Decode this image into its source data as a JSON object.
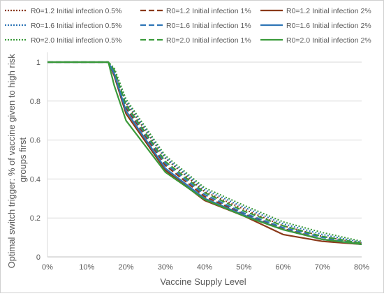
{
  "chart_data": {
    "type": "line",
    "title": "",
    "xlabel": "Vaccine Supply Level",
    "ylabel": "Optimal switch trigger: % of vaccine given to high risk groups first",
    "ylabel_lines": [
      "Optimal switch trigger: % of vaccine given to high risk",
      "groups first"
    ],
    "x_ticks": [
      0,
      10,
      20,
      30,
      40,
      50,
      60,
      70,
      80
    ],
    "x_tick_labels": [
      "0%",
      "10%",
      "20%",
      "30%",
      "40%",
      "50%",
      "60%",
      "70%",
      "80%"
    ],
    "y_ticks": [
      0,
      0.2,
      0.4,
      0.6,
      0.8,
      1
    ],
    "y_tick_labels": [
      "0",
      "0.2",
      "0.4",
      "0.6",
      "0.8",
      "1"
    ],
    "xlim": [
      0,
      80
    ],
    "ylim": [
      0,
      1
    ],
    "grid": "horizontal",
    "legend_position": "top",
    "series": [
      {
        "name": "R0=1.2 Initial infection 0.5%",
        "color": "#8b3a1a",
        "dash": "dotted",
        "x": [
          0,
          15.5,
          17,
          20,
          30,
          40,
          50,
          60,
          70,
          80
        ],
        "y": [
          1,
          1,
          0.96,
          0.79,
          0.505,
          0.335,
          0.245,
          0.16,
          0.105,
          0.07
        ]
      },
      {
        "name": "R0=1.2 Initial infection 1%",
        "color": "#8b3a1a",
        "dash": "dashed",
        "x": [
          0,
          15.5,
          17,
          20,
          30,
          40,
          50,
          60,
          70,
          80
        ],
        "y": [
          1,
          1,
          0.95,
          0.765,
          0.47,
          0.31,
          0.22,
          0.145,
          0.09,
          0.065
        ]
      },
      {
        "name": "R0=1.2 Initial infection 2%",
        "color": "#8b3a1a",
        "dash": "solid",
        "x": [
          0,
          15.5,
          17,
          20,
          30,
          40,
          50,
          60,
          70,
          80
        ],
        "y": [
          1,
          1,
          0.93,
          0.735,
          0.445,
          0.29,
          0.21,
          0.115,
          0.08,
          0.065
        ]
      },
      {
        "name": "R0=1.6 Initial infection 0.5%",
        "color": "#2e75b6",
        "dash": "dotted",
        "x": [
          0,
          15.5,
          17,
          20,
          30,
          40,
          50,
          60,
          70,
          80
        ],
        "y": [
          1,
          1,
          0.965,
          0.8,
          0.51,
          0.345,
          0.255,
          0.17,
          0.115,
          0.075
        ]
      },
      {
        "name": "R0=1.6 Initial infection 1%",
        "color": "#2e75b6",
        "dash": "dashed",
        "x": [
          0,
          15.5,
          17,
          20,
          30,
          40,
          50,
          60,
          70,
          80
        ],
        "y": [
          1,
          1,
          0.955,
          0.775,
          0.48,
          0.32,
          0.225,
          0.15,
          0.1,
          0.065
        ]
      },
      {
        "name": "R0=1.6 Initial infection 2%",
        "color": "#2e75b6",
        "dash": "solid",
        "x": [
          0,
          15.5,
          17,
          20,
          30,
          40,
          50,
          60,
          70,
          80
        ],
        "y": [
          1,
          1,
          0.94,
          0.75,
          0.455,
          0.3,
          0.215,
          0.14,
          0.09,
          0.065
        ]
      },
      {
        "name": "R0=2.0 Initial infection 0.5%",
        "color": "#3a9a3a",
        "dash": "dotted",
        "x": [
          0,
          15.5,
          17,
          20,
          30,
          40,
          50,
          60,
          70,
          80
        ],
        "y": [
          1,
          1,
          0.97,
          0.81,
          0.52,
          0.355,
          0.265,
          0.18,
          0.125,
          0.08
        ]
      },
      {
        "name": "R0=2.0 Initial infection 1%",
        "color": "#3a9a3a",
        "dash": "dashed",
        "x": [
          0,
          15.5,
          17,
          20,
          30,
          40,
          50,
          60,
          70,
          80
        ],
        "y": [
          1,
          1,
          0.96,
          0.78,
          0.49,
          0.33,
          0.235,
          0.16,
          0.105,
          0.07
        ]
      },
      {
        "name": "R0=2.0 Initial infection 2%",
        "color": "#3a9a3a",
        "dash": "solid",
        "x": [
          0,
          15.5,
          17,
          20,
          30,
          40,
          50,
          60,
          70,
          80
        ],
        "y": [
          1,
          1,
          0.88,
          0.7,
          0.435,
          0.295,
          0.21,
          0.14,
          0.09,
          0.065
        ]
      }
    ]
  }
}
